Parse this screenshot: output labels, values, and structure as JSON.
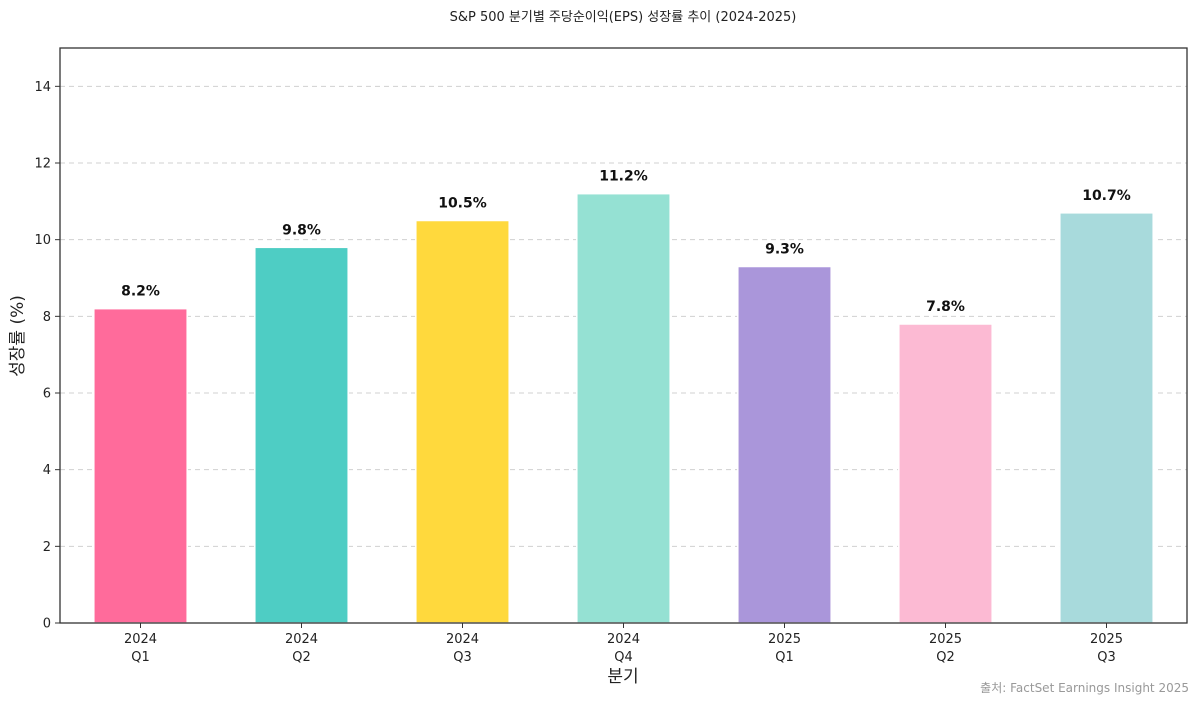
{
  "chart_data": {
    "type": "bar",
    "title": "S&P 500 분기별 주당순이익(EPS) 성장률 추이 (2024-2025)",
    "xlabel": "분기",
    "ylabel": "성장률 (%)",
    "categories": [
      [
        "2024",
        "Q1"
      ],
      [
        "2024",
        "Q2"
      ],
      [
        "2024",
        "Q3"
      ],
      [
        "2024",
        "Q4"
      ],
      [
        "2025",
        "Q1"
      ],
      [
        "2025",
        "Q2"
      ],
      [
        "2025",
        "Q3"
      ]
    ],
    "values": [
      8.2,
      9.8,
      10.5,
      11.2,
      9.3,
      7.8,
      10.7
    ],
    "value_labels": [
      "8.2%",
      "9.8%",
      "10.5%",
      "11.2%",
      "9.3%",
      "7.8%",
      "10.7%"
    ],
    "colors": [
      "#ff6b9b",
      "#4ecdc4",
      "#ffd93d",
      "#95e1d3",
      "#aa96da",
      "#fcbad3",
      "#a8dadc"
    ],
    "ylim": [
      0,
      15
    ],
    "yticks": [
      0,
      2,
      4,
      6,
      8,
      10,
      12,
      14
    ],
    "grid": "y-dashed",
    "legend": "none",
    "source": "출처: FactSet Earnings Insight 2025"
  }
}
